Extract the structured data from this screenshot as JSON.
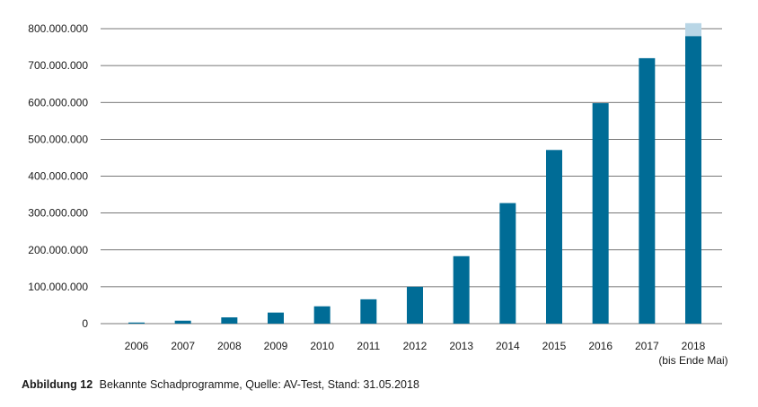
{
  "chart_data": {
    "type": "bar",
    "categories": [
      "2006",
      "2007",
      "2008",
      "2009",
      "2010",
      "2011",
      "2012",
      "2013",
      "2014",
      "2015",
      "2016",
      "2017",
      "2018"
    ],
    "category_notes": {
      "2018": "(bis Ende Mai)"
    },
    "series": [
      {
        "values": [
          3000000,
          8000000,
          17000000,
          30000000,
          47000000,
          66000000,
          100000000,
          183000000,
          327000000,
          471000000,
          598000000,
          720000000,
          780000000
        ]
      },
      {
        "values": [
          0,
          0,
          0,
          0,
          0,
          0,
          0,
          0,
          0,
          0,
          0,
          0,
          35000000
        ]
      }
    ],
    "colors": {
      "main": "#006c96",
      "extra": "#b9d6e6",
      "grid": "#4a4a4a"
    },
    "ylim": [
      0,
      800000000
    ],
    "yticks": [
      "0",
      "100.000.000",
      "200.000.000",
      "300.000.000",
      "400.000.000",
      "500.000.000",
      "600.000.000",
      "700.000.000",
      "800.000.000"
    ],
    "grid": true,
    "title": "",
    "xlabel": "",
    "ylabel": ""
  },
  "caption": {
    "label": "Abbildung 12",
    "text": "Bekannte Schadprogramme, Quelle: AV-Test, Stand: 31.05.2018"
  }
}
